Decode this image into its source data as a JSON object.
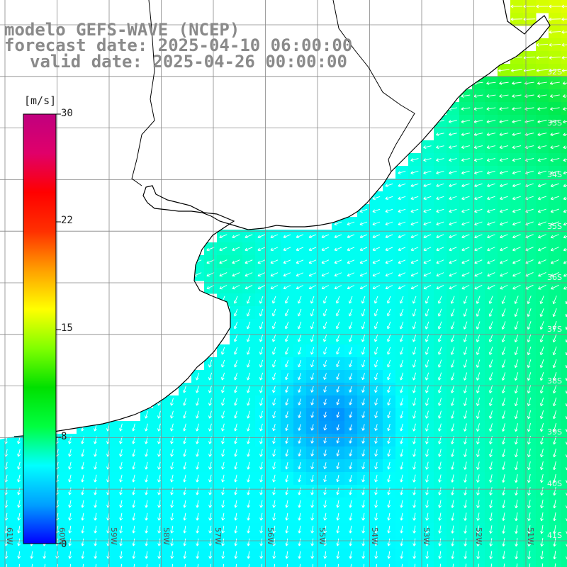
{
  "header": {
    "line1": "modelo GEFS-WAVE (NCEP)",
    "line2": "forecast date: 2025-04-10 06:00:00",
    "line3": "valid date: 2025-04-26 00:00:00"
  },
  "colorbar": {
    "unit": "[m/s]",
    "min": 0,
    "max": 30,
    "tick_labels": [
      "30",
      "22",
      "15",
      "8",
      "0"
    ],
    "colors": [
      "#0000ff",
      "#00a0ff",
      "#00ffff",
      "#00ff40",
      "#00e000",
      "#80ff00",
      "#ffff00",
      "#ffa000",
      "#ff3000",
      "#ff0000",
      "#e0006a",
      "#c0007f"
    ]
  },
  "map": {
    "lat_labels": [
      "32S",
      "33S",
      "34S",
      "35S",
      "36S",
      "37S",
      "38S",
      "39S",
      "40S",
      "41S"
    ],
    "lon_labels": [
      "61W",
      "60W",
      "59W",
      "58W",
      "57W",
      "56W",
      "55W",
      "54W",
      "53W",
      "52W",
      "51W"
    ],
    "land_color": "#ffffff",
    "grid_color": "#888888",
    "coast_color": "#000000"
  }
}
